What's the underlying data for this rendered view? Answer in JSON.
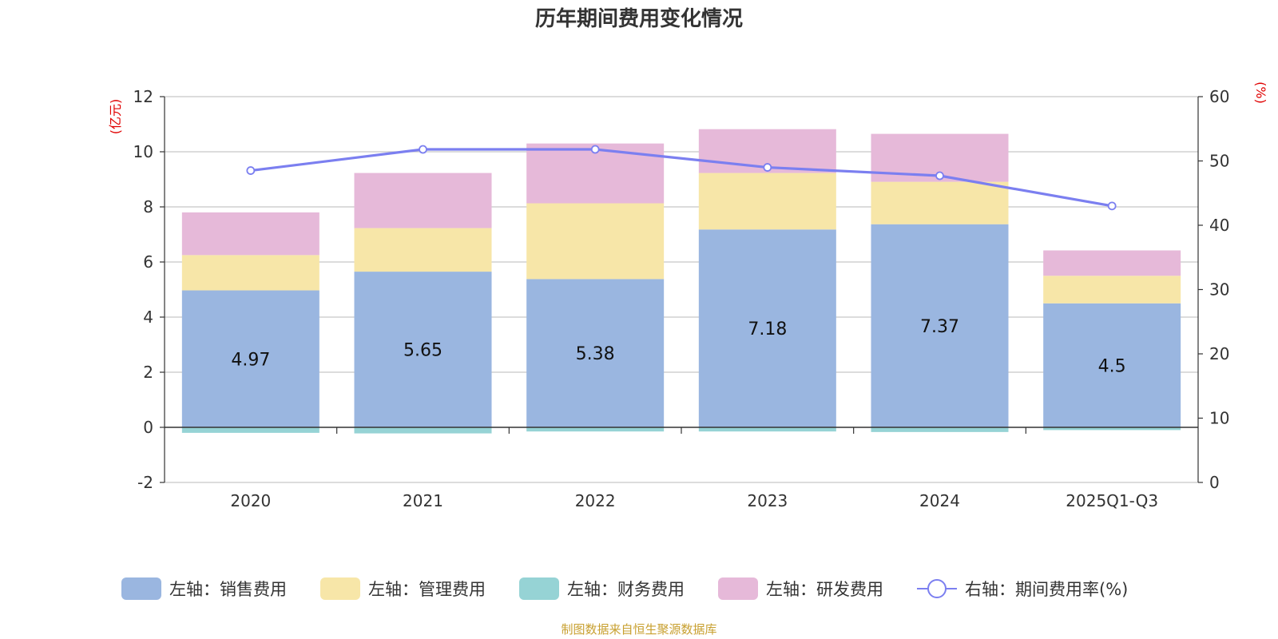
{
  "chart_data": {
    "type": "bar",
    "title": "历年期间费用变化情况",
    "categories": [
      "2020",
      "2021",
      "2022",
      "2023",
      "2024",
      "2025Q1-Q3"
    ],
    "left_axis": {
      "unit": "(亿元)",
      "ylim": [
        -2,
        12
      ],
      "ticks": [
        -2,
        0,
        2,
        4,
        6,
        8,
        10,
        12
      ]
    },
    "right_axis": {
      "unit": "(%)",
      "ylim": [
        0,
        60
      ],
      "ticks": [
        0,
        10,
        20,
        30,
        40,
        50,
        60
      ]
    },
    "series": [
      {
        "name": "左轴：销售费用",
        "type": "bar",
        "stack": true,
        "color": "#9ab6e0",
        "values": [
          4.97,
          5.65,
          5.38,
          7.18,
          7.37,
          4.5
        ],
        "show_labels": true
      },
      {
        "name": "左轴：管理费用",
        "type": "bar",
        "stack": true,
        "color": "#f7e6a8",
        "values": [
          1.28,
          1.58,
          2.75,
          2.05,
          1.54,
          1.0
        ]
      },
      {
        "name": "左轴：财务费用",
        "type": "bar",
        "stack": true,
        "color": "#96d3d5",
        "values": [
          -0.2,
          -0.22,
          -0.15,
          -0.15,
          -0.17,
          -0.1
        ]
      },
      {
        "name": "左轴：研发费用",
        "type": "bar",
        "stack": true,
        "color": "#e6b9d9",
        "values": [
          1.55,
          2.0,
          2.17,
          1.59,
          1.74,
          0.92
        ]
      },
      {
        "name": "右轴：期间费用率(%)",
        "type": "line",
        "axis": "right",
        "color": "#7b7ff0",
        "values": [
          48.5,
          51.8,
          51.8,
          49.0,
          47.7,
          43.0
        ]
      }
    ],
    "source": "制图数据来自恒生聚源数据库"
  }
}
